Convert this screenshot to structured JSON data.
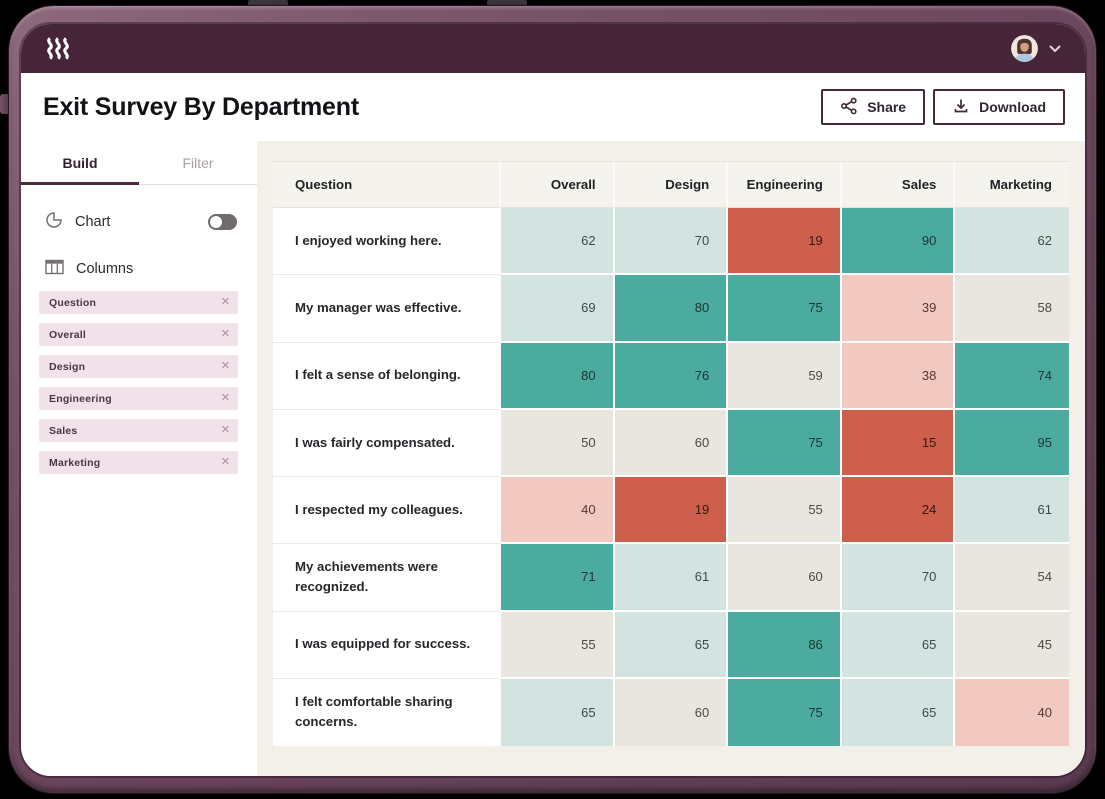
{
  "topbar": {
    "logo_icon": "ramp-squiggle-logo",
    "user": {
      "avatar_icon": "user-avatar-photo",
      "menu_icon": "chevron-down-icon"
    }
  },
  "header": {
    "title": "Exit Survey By Department",
    "buttons": [
      {
        "label": "Share",
        "icon": "share-nodes-icon"
      },
      {
        "label": "Download",
        "icon": "download-icon"
      }
    ]
  },
  "sidebar": {
    "tabs": [
      {
        "label": "Build",
        "active": true
      },
      {
        "label": "Filter",
        "active": false
      }
    ],
    "chart": {
      "label": "Chart",
      "icon": "pie-chart-icon",
      "toggle_on": false
    },
    "columns": {
      "label": "Columns",
      "icon": "table-columns-icon"
    },
    "chips": [
      "Question",
      "Overall",
      "Design",
      "Engineering",
      "Sales",
      "Marketing"
    ]
  },
  "table": {
    "columns": [
      "Question",
      "Overall",
      "Design",
      "Engineering",
      "Sales",
      "Marketing"
    ],
    "rows": [
      {
        "question": "I enjoyed working here.",
        "values": [
          62,
          70,
          19,
          90,
          62
        ]
      },
      {
        "question": "My manager was effective.",
        "values": [
          69,
          80,
          75,
          39,
          58
        ]
      },
      {
        "question": "I felt a sense of belonging.",
        "values": [
          80,
          76,
          59,
          38,
          74
        ]
      },
      {
        "question": "I was fairly compensated.",
        "values": [
          50,
          60,
          75,
          15,
          95
        ]
      },
      {
        "question": "I respected my colleagues.",
        "values": [
          40,
          19,
          55,
          24,
          61
        ]
      },
      {
        "question": "My achievements were recognized.",
        "values": [
          71,
          61,
          60,
          70,
          54
        ]
      },
      {
        "question": "I was equipped for success.",
        "values": [
          55,
          65,
          86,
          65,
          45
        ]
      },
      {
        "question": "I felt comfortable sharing concerns.",
        "values": [
          65,
          60,
          75,
          65,
          40
        ]
      }
    ]
  },
  "heatmap": {
    "bands": [
      {
        "name": "high",
        "min": 71,
        "bg": "#4aab9e",
        "text": "#1d3631"
      },
      {
        "name": "mid-high",
        "min": 61,
        "bg": "#d3e4e0",
        "text": "#3c4a47"
      },
      {
        "name": "mid",
        "min": 41,
        "bg": "#e9e6df",
        "text": "#4b4a44"
      },
      {
        "name": "low-mid",
        "min": 25,
        "bg": "#f2c9c1",
        "text": "#553832"
      },
      {
        "name": "low",
        "min": 0,
        "bg": "#cd5f4c",
        "text": "#331a10"
      }
    ]
  },
  "colors": {
    "topbar_bg": "#472539",
    "accent_maroon": "#4a2b3f",
    "panel_beige": "#f3f0e9",
    "header_cell_bg": "#f4f3ee",
    "chip_bg": "#f0e2e8",
    "chip_text": "#4c3544"
  }
}
